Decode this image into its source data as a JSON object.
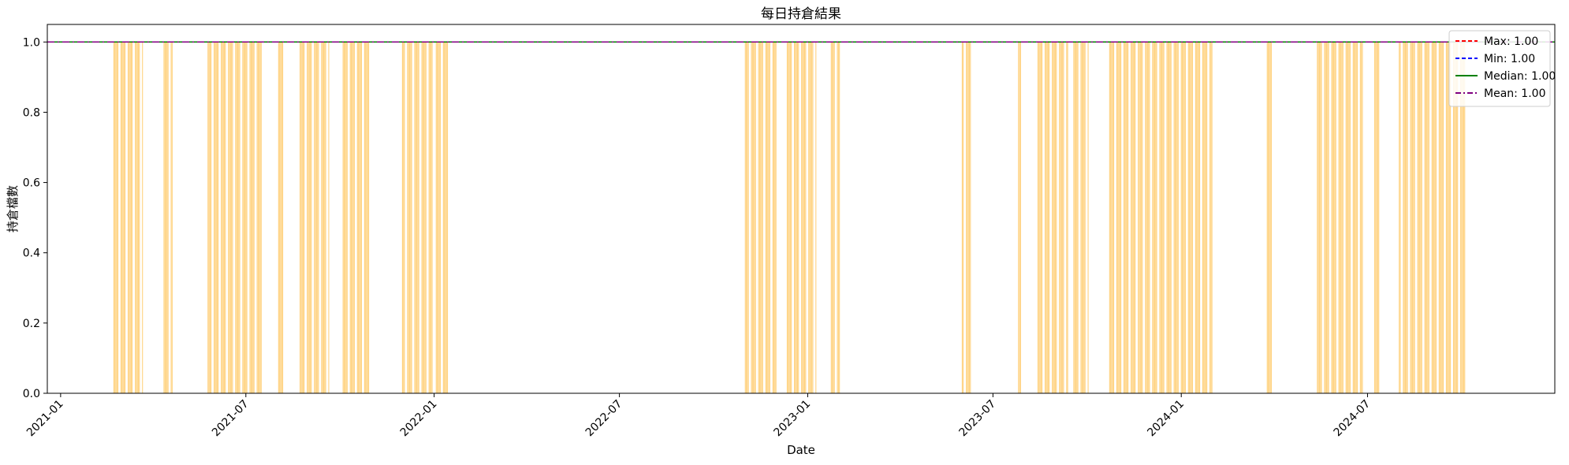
{
  "chart_data": {
    "type": "bar",
    "title": "每日持倉結果",
    "xlabel": "Date",
    "ylabel": "持倉檔數",
    "ylim": [
      0,
      1.05
    ],
    "xlim": [
      "2020-12-19",
      "2024-12-31"
    ],
    "xticks": [
      "2021-01",
      "2021-07",
      "2022-01",
      "2022-07",
      "2023-01",
      "2023-07",
      "2024-01",
      "2024-07"
    ],
    "yticks": [
      "0.0",
      "0.2",
      "0.4",
      "0.6",
      "0.8",
      "1.0"
    ],
    "grid": false,
    "legend_position": "top-right",
    "bar_color": "#FFD27F",
    "bar_value": 1.0,
    "holding_periods": [
      [
        "2021-02-22",
        "2021-03-22"
      ],
      [
        "2021-04-12",
        "2021-04-20"
      ],
      [
        "2021-05-25",
        "2021-07-16"
      ],
      [
        "2021-08-02",
        "2021-08-06"
      ],
      [
        "2021-08-23",
        "2021-09-20"
      ],
      [
        "2021-10-04",
        "2021-10-29"
      ],
      [
        "2021-12-01",
        "2021-12-30"
      ],
      [
        "2022-01-03",
        "2022-01-14"
      ],
      [
        "2022-11-01",
        "2022-12-01"
      ],
      [
        "2022-12-12",
        "2023-01-09"
      ],
      [
        "2023-01-24",
        "2023-02-01"
      ],
      [
        "2023-06-01",
        "2023-06-09"
      ],
      [
        "2023-07-26",
        "2023-07-28"
      ],
      [
        "2023-08-14",
        "2023-09-12"
      ],
      [
        "2023-09-18",
        "2023-10-02"
      ],
      [
        "2023-10-23",
        "2024-01-12"
      ],
      [
        "2024-01-15",
        "2024-01-31"
      ],
      [
        "2024-03-25",
        "2024-03-29"
      ],
      [
        "2024-05-13",
        "2024-06-26"
      ],
      [
        "2024-07-08",
        "2024-07-12"
      ],
      [
        "2024-08-01",
        "2024-10-04"
      ]
    ],
    "series": [
      {
        "name": "Max: 1.00",
        "type": "hline",
        "value": 1.0,
        "color": "#FF0000",
        "style": "dashed"
      },
      {
        "name": "Min: 1.00",
        "type": "hline",
        "value": 1.0,
        "color": "#0000FF",
        "style": "dashed"
      },
      {
        "name": "Median: 1.00",
        "type": "hline",
        "value": 1.0,
        "color": "#008000",
        "style": "solid"
      },
      {
        "name": "Mean: 1.00",
        "type": "hline",
        "value": 1.0,
        "color": "#800080",
        "style": "dashdot"
      }
    ],
    "reference_line": {
      "value": 1.0,
      "color": "#000000",
      "style": "solid"
    }
  }
}
